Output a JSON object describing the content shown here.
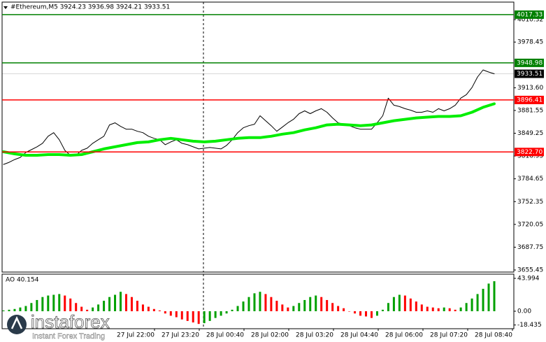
{
  "chart_data": [
    {
      "type": "line",
      "title": "#Ethereum,M5  3924.23 3936.98 3924.21 3933.51",
      "ylim": [
        3652.5,
        4035.1
      ],
      "yticks": [
        4010.32,
        3978.45,
        {
          "value": 3913.6,
          "label": "3913.60"
        },
        3881.55,
        3849.25,
        3816.95,
        3784.65,
        3752.35,
        3720.05,
        3687.75,
        3655.45
      ],
      "xticklabels": [
        "27 Jul 22:00",
        "27 Jul 23:20",
        "28 Jul 00:40",
        "28 Jul 02:00",
        "28 Jul 03:20",
        "28 Jul 04:40",
        "28 Jul 06:00",
        "28 Jul 07:20",
        "28 Jul 08:40"
      ],
      "series": [
        {
          "name": "Close",
          "color": "#000000",
          "width": 1,
          "values": [
            3805,
            3808,
            3812,
            3815,
            3822,
            3826,
            3830,
            3835,
            3845,
            3850,
            3840,
            3825,
            3818,
            3818,
            3825,
            3828,
            3835,
            3840,
            3845,
            3861,
            3864,
            3859,
            3855,
            3855,
            3852,
            3850,
            3845,
            3842,
            3840,
            3833,
            3837,
            3840,
            3835,
            3833,
            3830,
            3827,
            3828,
            3829,
            3828,
            3827,
            3832,
            3840,
            3850,
            3857,
            3860,
            3862,
            3874,
            3867,
            3860,
            3852,
            3858,
            3864,
            3869,
            3877,
            3881,
            3877,
            3881,
            3884,
            3879,
            3871,
            3864,
            3862,
            3860,
            3857,
            3855,
            3855,
            3855,
            3864,
            3874,
            3899,
            3889,
            3887,
            3884,
            3882,
            3879,
            3879,
            3881,
            3879,
            3884,
            3881,
            3884,
            3889,
            3899,
            3904,
            3914,
            3929,
            3939,
            3936,
            3933.51
          ]
        },
        {
          "name": "MA",
          "color": "#00ee00",
          "width": 4,
          "values": [
            3823,
            3820,
            3818,
            3818,
            3819,
            3819,
            3818,
            3819,
            3823,
            3827,
            3830,
            3833,
            3836,
            3837,
            3840,
            3842,
            3840,
            3838,
            3837,
            3838,
            3840,
            3842,
            3843,
            3843,
            3845,
            3848,
            3850,
            3854,
            3857,
            3861,
            3862,
            3861,
            3860,
            3861,
            3864,
            3867,
            3869,
            3871,
            3872,
            3873,
            3873,
            3874,
            3879,
            3886,
            3891
          ]
        }
      ],
      "levels": [
        {
          "value": 4017.33,
          "color": "#008000"
        },
        {
          "value": 3948.98,
          "color": "#008000"
        },
        {
          "value": 3933.51,
          "color": "#000000"
        },
        {
          "value": 3896.41,
          "color": "#ff0000"
        },
        {
          "value": 3822.7,
          "label": "3822.70",
          "color": "#ff0000"
        }
      ]
    },
    {
      "type": "bar",
      "title": "AO 40.154",
      "ylim": [
        -23.4,
        49.6
      ],
      "yticks": [
        43.994,
        {
          "value": 0,
          "label": "0.00"
        },
        -18.435
      ],
      "up_color": "#00a000",
      "down_color": "#ff0000",
      "values": [
        1,
        2,
        3,
        5,
        7,
        11,
        15,
        19,
        21,
        22,
        23,
        21,
        17,
        11,
        6,
        2,
        5,
        9,
        14,
        19,
        22,
        26,
        23,
        19,
        14,
        9,
        6,
        3,
        1,
        -3,
        -6,
        -8,
        -11,
        -13,
        -15,
        -17,
        -16,
        -13,
        -9,
        -6,
        -3,
        2,
        7,
        13,
        19,
        24,
        26,
        23,
        19,
        14,
        9,
        5,
        7,
        11,
        15,
        19,
        21,
        19,
        15,
        11,
        7,
        4,
        0,
        -3,
        -6,
        -7,
        -9,
        -6,
        2,
        11,
        19,
        22,
        21,
        17,
        13,
        9,
        6,
        5,
        4,
        5,
        4,
        2,
        5,
        11,
        17,
        23,
        30,
        37,
        40.154
      ]
    }
  ],
  "logo": {
    "name": "instaforex",
    "tagline": "Instant Forex Trading"
  }
}
